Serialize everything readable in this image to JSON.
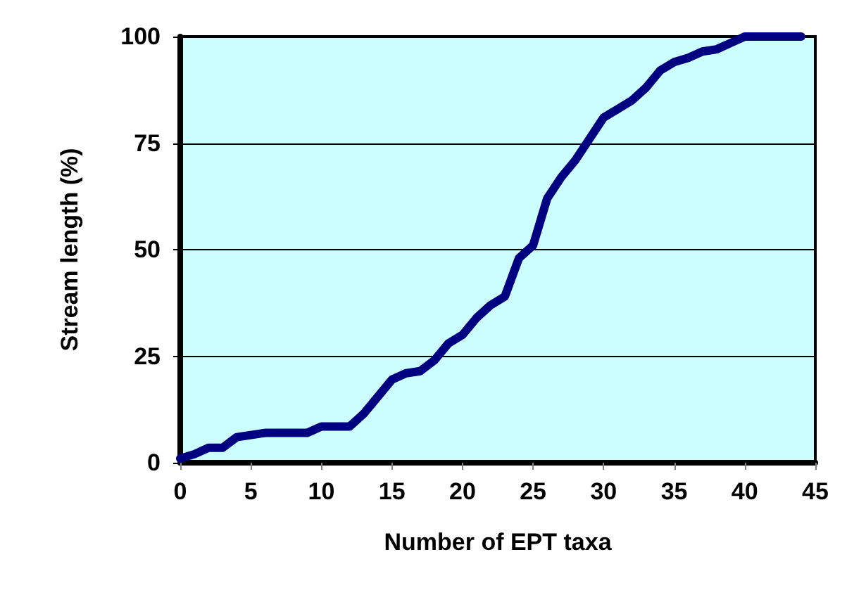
{
  "chart_data": {
    "type": "line",
    "xlabel": "Number of EPT taxa",
    "ylabel": "Stream length (%)",
    "x": [
      0,
      1,
      2,
      3,
      4,
      5,
      6,
      7,
      8,
      9,
      10,
      11,
      12,
      13,
      14,
      15,
      16,
      17,
      18,
      19,
      20,
      21,
      22,
      23,
      24,
      25,
      26,
      27,
      28,
      29,
      30,
      31,
      32,
      33,
      34,
      35,
      36,
      37,
      38,
      39,
      40,
      41,
      42,
      43,
      44
    ],
    "series": [
      {
        "color": "#000080",
        "values": [
          1,
          2,
          3.5,
          3.5,
          6,
          6.5,
          7,
          7,
          7,
          7,
          8.5,
          8.5,
          8.5,
          11.5,
          15.5,
          19.5,
          21,
          21.5,
          24,
          28,
          30,
          34,
          37,
          39,
          48,
          51,
          62,
          67,
          71,
          76,
          81,
          83,
          85,
          88,
          92,
          94,
          95,
          96.5,
          97,
          98.5,
          100,
          100,
          100,
          100,
          100
        ]
      }
    ],
    "xlim": [
      0,
      45
    ],
    "xticks": [
      0,
      5,
      10,
      15,
      20,
      25,
      30,
      35,
      40,
      45
    ],
    "ylim": [
      0,
      100
    ],
    "yticks": [
      0,
      25,
      50,
      75,
      100
    ],
    "grid": "y",
    "marker": "none",
    "line_style": "solid"
  }
}
